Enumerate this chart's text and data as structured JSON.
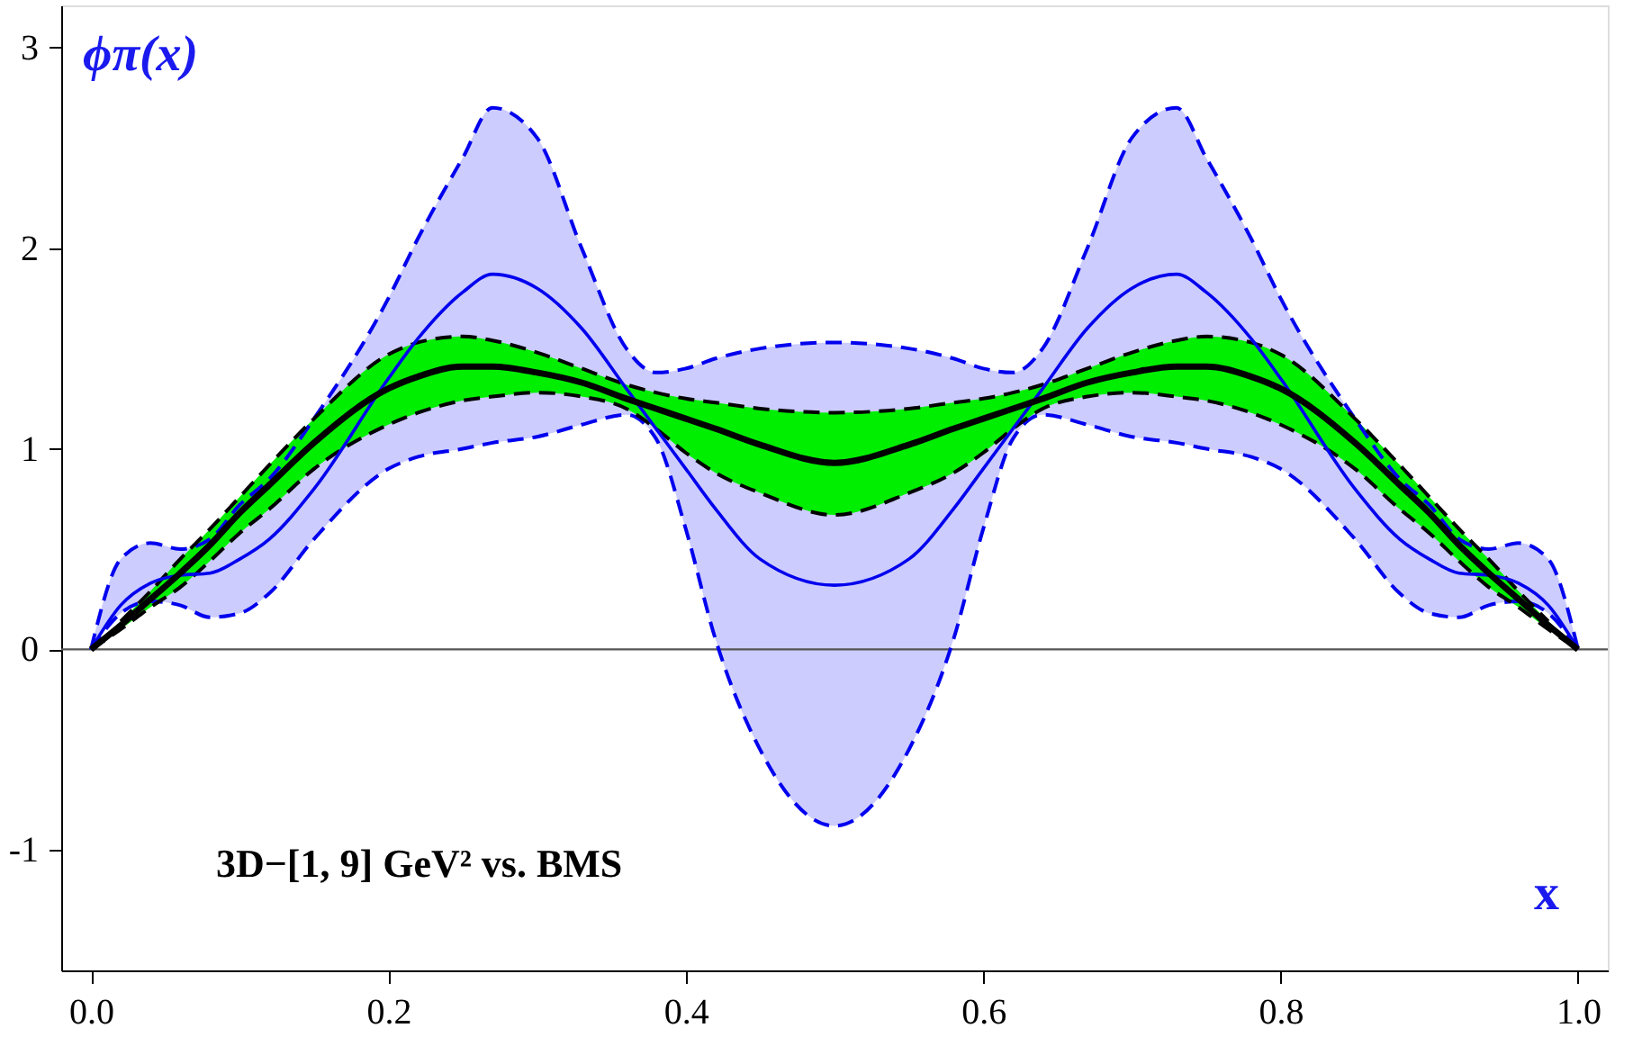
{
  "chart_data": {
    "type": "line",
    "xlabel": "x",
    "ylabel": "ϕπ(x)",
    "annotations": [
      "3D−[1, 9] GeV² vs. BMS"
    ],
    "x": [
      0,
      0.02,
      0.04,
      0.06,
      0.08,
      0.1,
      0.12,
      0.15,
      0.2,
      0.22,
      0.25,
      0.27,
      0.3,
      0.33,
      0.36,
      0.38,
      0.4,
      0.42,
      0.45,
      0.5,
      0.55,
      0.58,
      0.6,
      0.62,
      0.64,
      0.67,
      0.7,
      0.73,
      0.75,
      0.78,
      0.8,
      0.85,
      0.88,
      0.9,
      0.92,
      0.94,
      0.96,
      0.98,
      1.0
    ],
    "series": [
      {
        "color": "#0000ee",
        "line_style": "dashed",
        "values": [
          0,
          0.45,
          0.53,
          0.5,
          0.55,
          0.72,
          0.85,
          1.15,
          1.75,
          2.05,
          2.45,
          2.7,
          2.55,
          2.0,
          1.5,
          1.38,
          1.4,
          1.45,
          1.5,
          1.53,
          1.5,
          1.45,
          1.4,
          1.38,
          1.5,
          2.0,
          2.55,
          2.7,
          2.45,
          2.05,
          1.75,
          1.15,
          0.85,
          0.72,
          0.55,
          0.5,
          0.53,
          0.45,
          0
        ]
      },
      {
        "color": "#0000ee",
        "line_style": "dashed",
        "values": [
          0,
          0.18,
          0.24,
          0.22,
          0.16,
          0.18,
          0.28,
          0.55,
          0.9,
          0.96,
          1.0,
          1.03,
          1.06,
          1.12,
          1.17,
          1.05,
          0.6,
          0.05,
          -0.5,
          -0.88,
          -0.5,
          0.05,
          0.6,
          1.05,
          1.17,
          1.12,
          1.06,
          1.03,
          1.0,
          0.96,
          0.9,
          0.55,
          0.28,
          0.18,
          0.16,
          0.22,
          0.24,
          0.18,
          0
        ]
      },
      {
        "color": "#000000",
        "line_style": "dashed",
        "values": [
          null,
          0.14,
          0.29,
          0.45,
          0.6,
          0.76,
          0.92,
          1.15,
          1.47,
          1.53,
          1.56,
          1.54,
          1.48,
          1.4,
          1.32,
          1.28,
          1.25,
          1.23,
          1.2,
          1.18,
          1.2,
          1.23,
          1.25,
          1.28,
          1.32,
          1.4,
          1.48,
          1.54,
          1.56,
          1.53,
          1.47,
          1.15,
          0.92,
          0.76,
          0.6,
          0.45,
          0.29,
          0.14,
          null
        ]
      },
      {
        "color": "#000000",
        "line_style": "dashed",
        "values": [
          0,
          0.1,
          0.21,
          0.31,
          0.44,
          0.58,
          0.7,
          0.9,
          1.12,
          1.18,
          1.24,
          1.26,
          1.28,
          1.26,
          1.2,
          1.1,
          0.98,
          0.88,
          0.78,
          0.67,
          0.78,
          0.88,
          0.98,
          1.1,
          1.2,
          1.26,
          1.28,
          1.26,
          1.24,
          1.18,
          1.12,
          0.9,
          0.7,
          0.58,
          0.44,
          0.31,
          0.21,
          0.1,
          0
        ]
      },
      {
        "color": "#0000ee",
        "line_style": "solid",
        "values": [
          0,
          0.22,
          0.33,
          0.37,
          0.38,
          0.45,
          0.55,
          0.8,
          1.35,
          1.55,
          1.78,
          1.87,
          1.8,
          1.6,
          1.3,
          1.1,
          0.9,
          0.7,
          0.45,
          0.32,
          0.45,
          0.7,
          0.9,
          1.1,
          1.3,
          1.6,
          1.8,
          1.87,
          1.78,
          1.55,
          1.35,
          0.8,
          0.55,
          0.45,
          0.38,
          0.37,
          0.33,
          0.22,
          0
        ],
        "upper": [
          0,
          0.45,
          0.53,
          0.5,
          0.55,
          0.72,
          0.85,
          1.15,
          1.75,
          2.05,
          2.45,
          2.7,
          2.55,
          2.0,
          1.5,
          1.38,
          1.4,
          1.45,
          1.5,
          1.53,
          1.5,
          1.45,
          1.4,
          1.38,
          1.5,
          2.0,
          2.55,
          2.7,
          2.45,
          2.05,
          1.75,
          1.15,
          0.85,
          0.72,
          0.55,
          0.5,
          0.53,
          0.45,
          0
        ],
        "lower": [
          0,
          0.18,
          0.24,
          0.22,
          0.16,
          0.18,
          0.28,
          0.55,
          0.9,
          0.96,
          1.0,
          1.03,
          1.06,
          1.12,
          1.17,
          1.05,
          0.6,
          0.05,
          -0.5,
          -0.88,
          -0.5,
          0.05,
          0.6,
          1.05,
          1.17,
          1.12,
          1.06,
          1.03,
          1.0,
          0.96,
          0.9,
          0.55,
          0.28,
          0.18,
          0.16,
          0.22,
          0.24,
          0.18,
          0
        ]
      },
      {
        "color": "#000000",
        "line_style": "solid",
        "values": [
          0,
          0.12,
          0.25,
          0.38,
          0.52,
          0.68,
          0.82,
          1.03,
          1.3,
          1.36,
          1.41,
          1.41,
          1.38,
          1.33,
          1.25,
          1.2,
          1.15,
          1.1,
          1.02,
          0.93,
          1.02,
          1.1,
          1.15,
          1.2,
          1.25,
          1.33,
          1.38,
          1.41,
          1.41,
          1.36,
          1.3,
          1.03,
          0.82,
          0.68,
          0.52,
          0.38,
          0.25,
          0.12,
          0
        ],
        "upper": [
          0,
          0.14,
          0.29,
          0.45,
          0.6,
          0.76,
          0.92,
          1.15,
          1.47,
          1.53,
          1.56,
          1.54,
          1.48,
          1.4,
          1.32,
          1.28,
          1.25,
          1.23,
          1.2,
          1.18,
          1.2,
          1.23,
          1.25,
          1.28,
          1.32,
          1.4,
          1.48,
          1.54,
          1.56,
          1.53,
          1.47,
          1.15,
          0.92,
          0.76,
          0.6,
          0.45,
          0.29,
          0.14,
          0
        ],
        "lower": [
          0,
          0.1,
          0.21,
          0.31,
          0.44,
          0.58,
          0.7,
          0.9,
          1.12,
          1.18,
          1.24,
          1.26,
          1.28,
          1.26,
          1.2,
          1.1,
          0.98,
          0.88,
          0.78,
          0.67,
          0.78,
          0.88,
          0.98,
          1.1,
          1.2,
          1.26,
          1.28,
          1.26,
          1.24,
          1.18,
          1.12,
          0.9,
          0.7,
          0.58,
          0.44,
          0.31,
          0.21,
          0.1,
          0
        ]
      }
    ],
    "ref_lines": [
      {
        "axis": "y",
        "value": 0,
        "color": "#555555"
      }
    ],
    "xlim": [
      -0.02,
      1.02
    ],
    "ylim": [
      -1.6,
      3.21
    ],
    "xticks": [
      {
        "value": 0,
        "label": "0.0"
      },
      {
        "value": 0.2,
        "label": "0.2"
      },
      {
        "value": 0.4,
        "label": "0.4"
      },
      {
        "value": 0.6,
        "label": "0.6"
      },
      {
        "value": 0.8,
        "label": "0.8"
      },
      {
        "value": 1,
        "label": "1.0"
      }
    ],
    "yticks": [
      -1,
      0,
      1,
      2,
      3
    ],
    "grid": false
  }
}
